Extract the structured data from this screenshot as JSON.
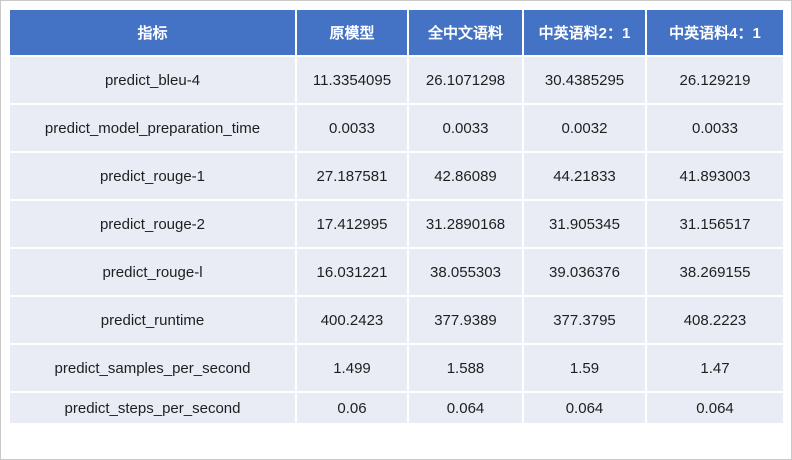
{
  "colors": {
    "header_bg": "#4472C4",
    "header_text": "#FFFFFF",
    "row_bg": "#E9EBF5",
    "body_text": "#1F1F1F",
    "grid_lines": "#FFFFFF",
    "page_border": "#C9C9C9"
  },
  "table": {
    "columns": [
      "指标",
      "原模型",
      "全中文语料",
      "中英语料2：1",
      "中英语料4：1"
    ],
    "rows": [
      {
        "metric": "predict_bleu-4",
        "values": [
          "11.3354095",
          "26.1071298",
          "30.4385295",
          "26.129219"
        ]
      },
      {
        "metric": "predict_model_preparation_time",
        "values": [
          "0.0033",
          "0.0033",
          "0.0032",
          "0.0033"
        ]
      },
      {
        "metric": "predict_rouge-1",
        "values": [
          "27.187581",
          "42.86089",
          "44.21833",
          "41.893003"
        ]
      },
      {
        "metric": "predict_rouge-2",
        "values": [
          "17.412995",
          "31.2890168",
          "31.905345",
          "31.156517"
        ]
      },
      {
        "metric": "predict_rouge-l",
        "values": [
          "16.031221",
          "38.055303",
          "39.036376",
          "38.269155"
        ]
      },
      {
        "metric": "predict_runtime",
        "values": [
          "400.2423",
          "377.9389",
          "377.3795",
          "408.2223"
        ]
      },
      {
        "metric": "predict_samples_per_second",
        "values": [
          "1.499",
          "1.588",
          "1.59",
          "1.47"
        ]
      },
      {
        "metric": "predict_steps_per_second",
        "values": [
          "0.06",
          "0.064",
          "0.064",
          "0.064"
        ]
      }
    ]
  },
  "chart_data": {
    "type": "table",
    "title": "",
    "columns": [
      "指标",
      "原模型",
      "全中文语料",
      "中英语料2：1",
      "中英语料4：1"
    ],
    "rows": [
      [
        "predict_bleu-4",
        11.3354095,
        26.1071298,
        30.4385295,
        26.129219
      ],
      [
        "predict_model_preparation_time",
        0.0033,
        0.0033,
        0.0032,
        0.0033
      ],
      [
        "predict_rouge-1",
        27.187581,
        42.86089,
        44.21833,
        41.893003
      ],
      [
        "predict_rouge-2",
        17.412995,
        31.2890168,
        31.905345,
        31.156517
      ],
      [
        "predict_rouge-l",
        16.031221,
        38.055303,
        39.036376,
        38.269155
      ],
      [
        "predict_runtime",
        400.2423,
        377.9389,
        377.3795,
        408.2223
      ],
      [
        "predict_samples_per_second",
        1.499,
        1.588,
        1.59,
        1.47
      ],
      [
        "predict_steps_per_second",
        0.06,
        0.064,
        0.064,
        0.064
      ]
    ]
  }
}
